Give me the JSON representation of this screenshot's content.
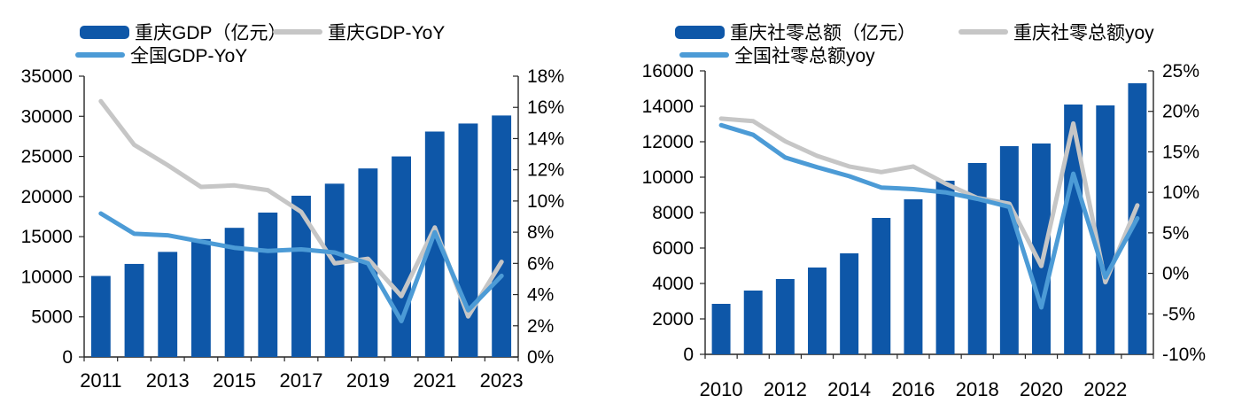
{
  "page": {
    "background": "#ffffff"
  },
  "colors": {
    "bar_blue": "#0E57A8",
    "line_gray": "#C6C6C6",
    "line_light_blue": "#4C9BD6",
    "axis": "#262626",
    "text": "#000000"
  },
  "chart_data": [
    {
      "type": "bar+line",
      "title": "",
      "categories": [
        "2011",
        "2012",
        "2013",
        "2014",
        "2015",
        "2016",
        "2017",
        "2018",
        "2019",
        "2020",
        "2021",
        "2022",
        "2023"
      ],
      "x_label_step": 2,
      "x_tick_labels": [
        "2011",
        "2013",
        "2015",
        "2017",
        "2019",
        "2021",
        "2023"
      ],
      "series": [
        {
          "name": "重庆GDP（亿元）",
          "kind": "bar",
          "axis": "left",
          "color": "#0E57A8",
          "values": [
            10100,
            11600,
            13100,
            14700,
            16100,
            18000,
            20100,
            21600,
            23500,
            25000,
            28100,
            29100,
            30100
          ]
        },
        {
          "name": "重庆GDP-YoY",
          "kind": "line",
          "axis": "right",
          "color": "#C6C6C6",
          "values": [
            16.4,
            13.6,
            12.3,
            10.9,
            11.0,
            10.7,
            9.3,
            6.0,
            6.3,
            3.9,
            8.3,
            2.6,
            6.1
          ]
        },
        {
          "name": "全国GDP-YoY",
          "kind": "line",
          "axis": "right",
          "color": "#4C9BD6",
          "values": [
            9.2,
            7.9,
            7.8,
            7.4,
            7.0,
            6.8,
            6.9,
            6.7,
            6.0,
            2.3,
            8.0,
            3.0,
            5.2
          ]
        }
      ],
      "left_axis": {
        "min": 0,
        "max": 35000,
        "step": 5000,
        "format": "number"
      },
      "right_axis": {
        "min": 0,
        "max": 18,
        "step": 2,
        "format": "percent"
      },
      "grid": false,
      "legend_position": "top-left"
    },
    {
      "type": "bar+line",
      "title": "",
      "categories": [
        "2010",
        "2011",
        "2012",
        "2013",
        "2014",
        "2015",
        "2016",
        "2017",
        "2018",
        "2019",
        "2020",
        "2021",
        "2022",
        "2023"
      ],
      "x_label_step": 2,
      "x_tick_labels": [
        "2010",
        "2012",
        "2014",
        "2016",
        "2018",
        "2020",
        "2022"
      ],
      "series": [
        {
          "name": "重庆社零总额（亿元）",
          "kind": "bar",
          "axis": "left",
          "color": "#0E57A8",
          "values": [
            2850,
            3600,
            4250,
            4900,
            5700,
            7700,
            8750,
            9800,
            10800,
            11750,
            11900,
            14100,
            14050,
            15300
          ]
        },
        {
          "name": "重庆社零总额yoy",
          "kind": "line",
          "axis": "right",
          "color": "#C6C6C6",
          "values": [
            19.1,
            18.8,
            16.3,
            14.5,
            13.2,
            12.5,
            13.2,
            11.1,
            9.3,
            8.6,
            0.9,
            18.5,
            -1.1,
            8.4
          ]
        },
        {
          "name": "全国社零总额yoy",
          "kind": "line",
          "axis": "right",
          "color": "#4C9BD6",
          "values": [
            18.3,
            17.1,
            14.3,
            13.1,
            12.0,
            10.6,
            10.4,
            10.0,
            9.2,
            8.2,
            -4.2,
            12.3,
            -0.5,
            6.8
          ]
        }
      ],
      "left_axis": {
        "min": 0,
        "max": 16000,
        "step": 2000,
        "format": "number"
      },
      "right_axis": {
        "min": -10,
        "max": 25,
        "step": 5,
        "format": "percent"
      },
      "grid": false,
      "legend_position": "top-left"
    }
  ]
}
